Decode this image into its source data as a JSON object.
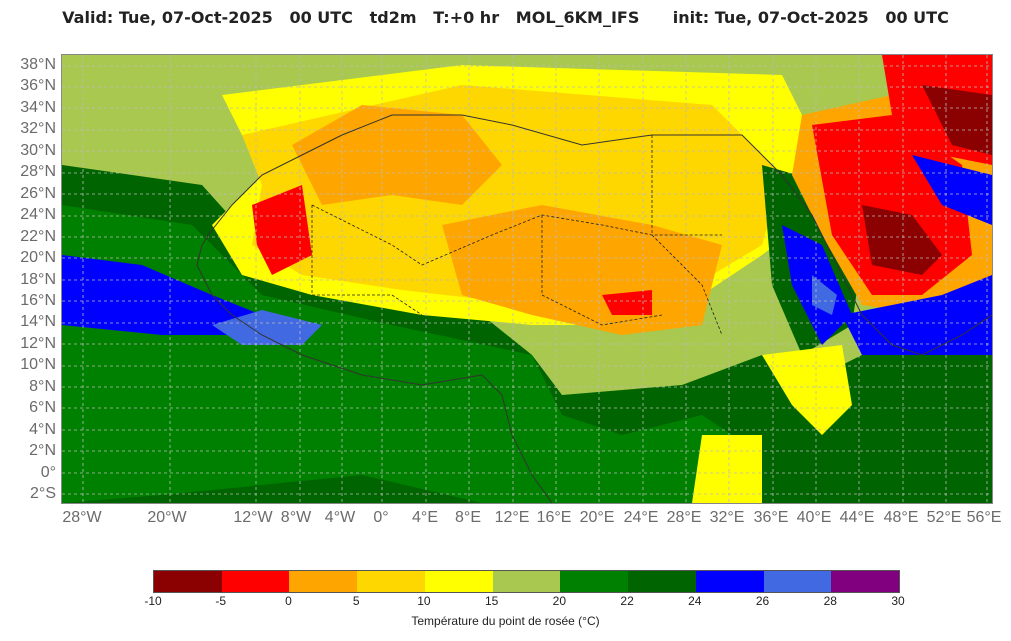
{
  "header": {
    "title": "Valid: Tue, 07-Oct-2025   00 UTC   td2m   T:+0 hr   MOL_6KM_IFS      init: Tue, 07-Oct-2025   00 UTC"
  },
  "map": {
    "lat_labels": [
      "38°N",
      "36°N",
      "34°N",
      "32°N",
      "30°N",
      "28°N",
      "26°N",
      "24°N",
      "22°N",
      "20°N",
      "18°N",
      "16°N",
      "14°N",
      "12°N",
      "10°N",
      "8°N",
      "6°N",
      "4°N",
      "2°N",
      "0°",
      "2°S"
    ],
    "lon_labels": [
      "28°W",
      "20°W",
      "12°W",
      "8°W",
      "4°W",
      "0°",
      "4°E",
      "8°E",
      "12°E",
      "16°E",
      "20°E",
      "24°E",
      "28°E",
      "32°E",
      "36°E",
      "40°E",
      "44°E",
      "48°E",
      "52°E",
      "56°E"
    ]
  },
  "legend": {
    "title": "Température du point de rosée (°C)",
    "ticks": [
      "-10",
      "-5",
      "0",
      "5",
      "10",
      "15",
      "20",
      "22",
      "24",
      "26",
      "28",
      "30"
    ],
    "colors": [
      "#8b0000",
      "#ff0000",
      "#ffa500",
      "#ffd700",
      "#ffff00",
      "#a9c84f",
      "#008000",
      "#006400",
      "#0000ff",
      "#4169e1",
      "#800080"
    ]
  }
}
